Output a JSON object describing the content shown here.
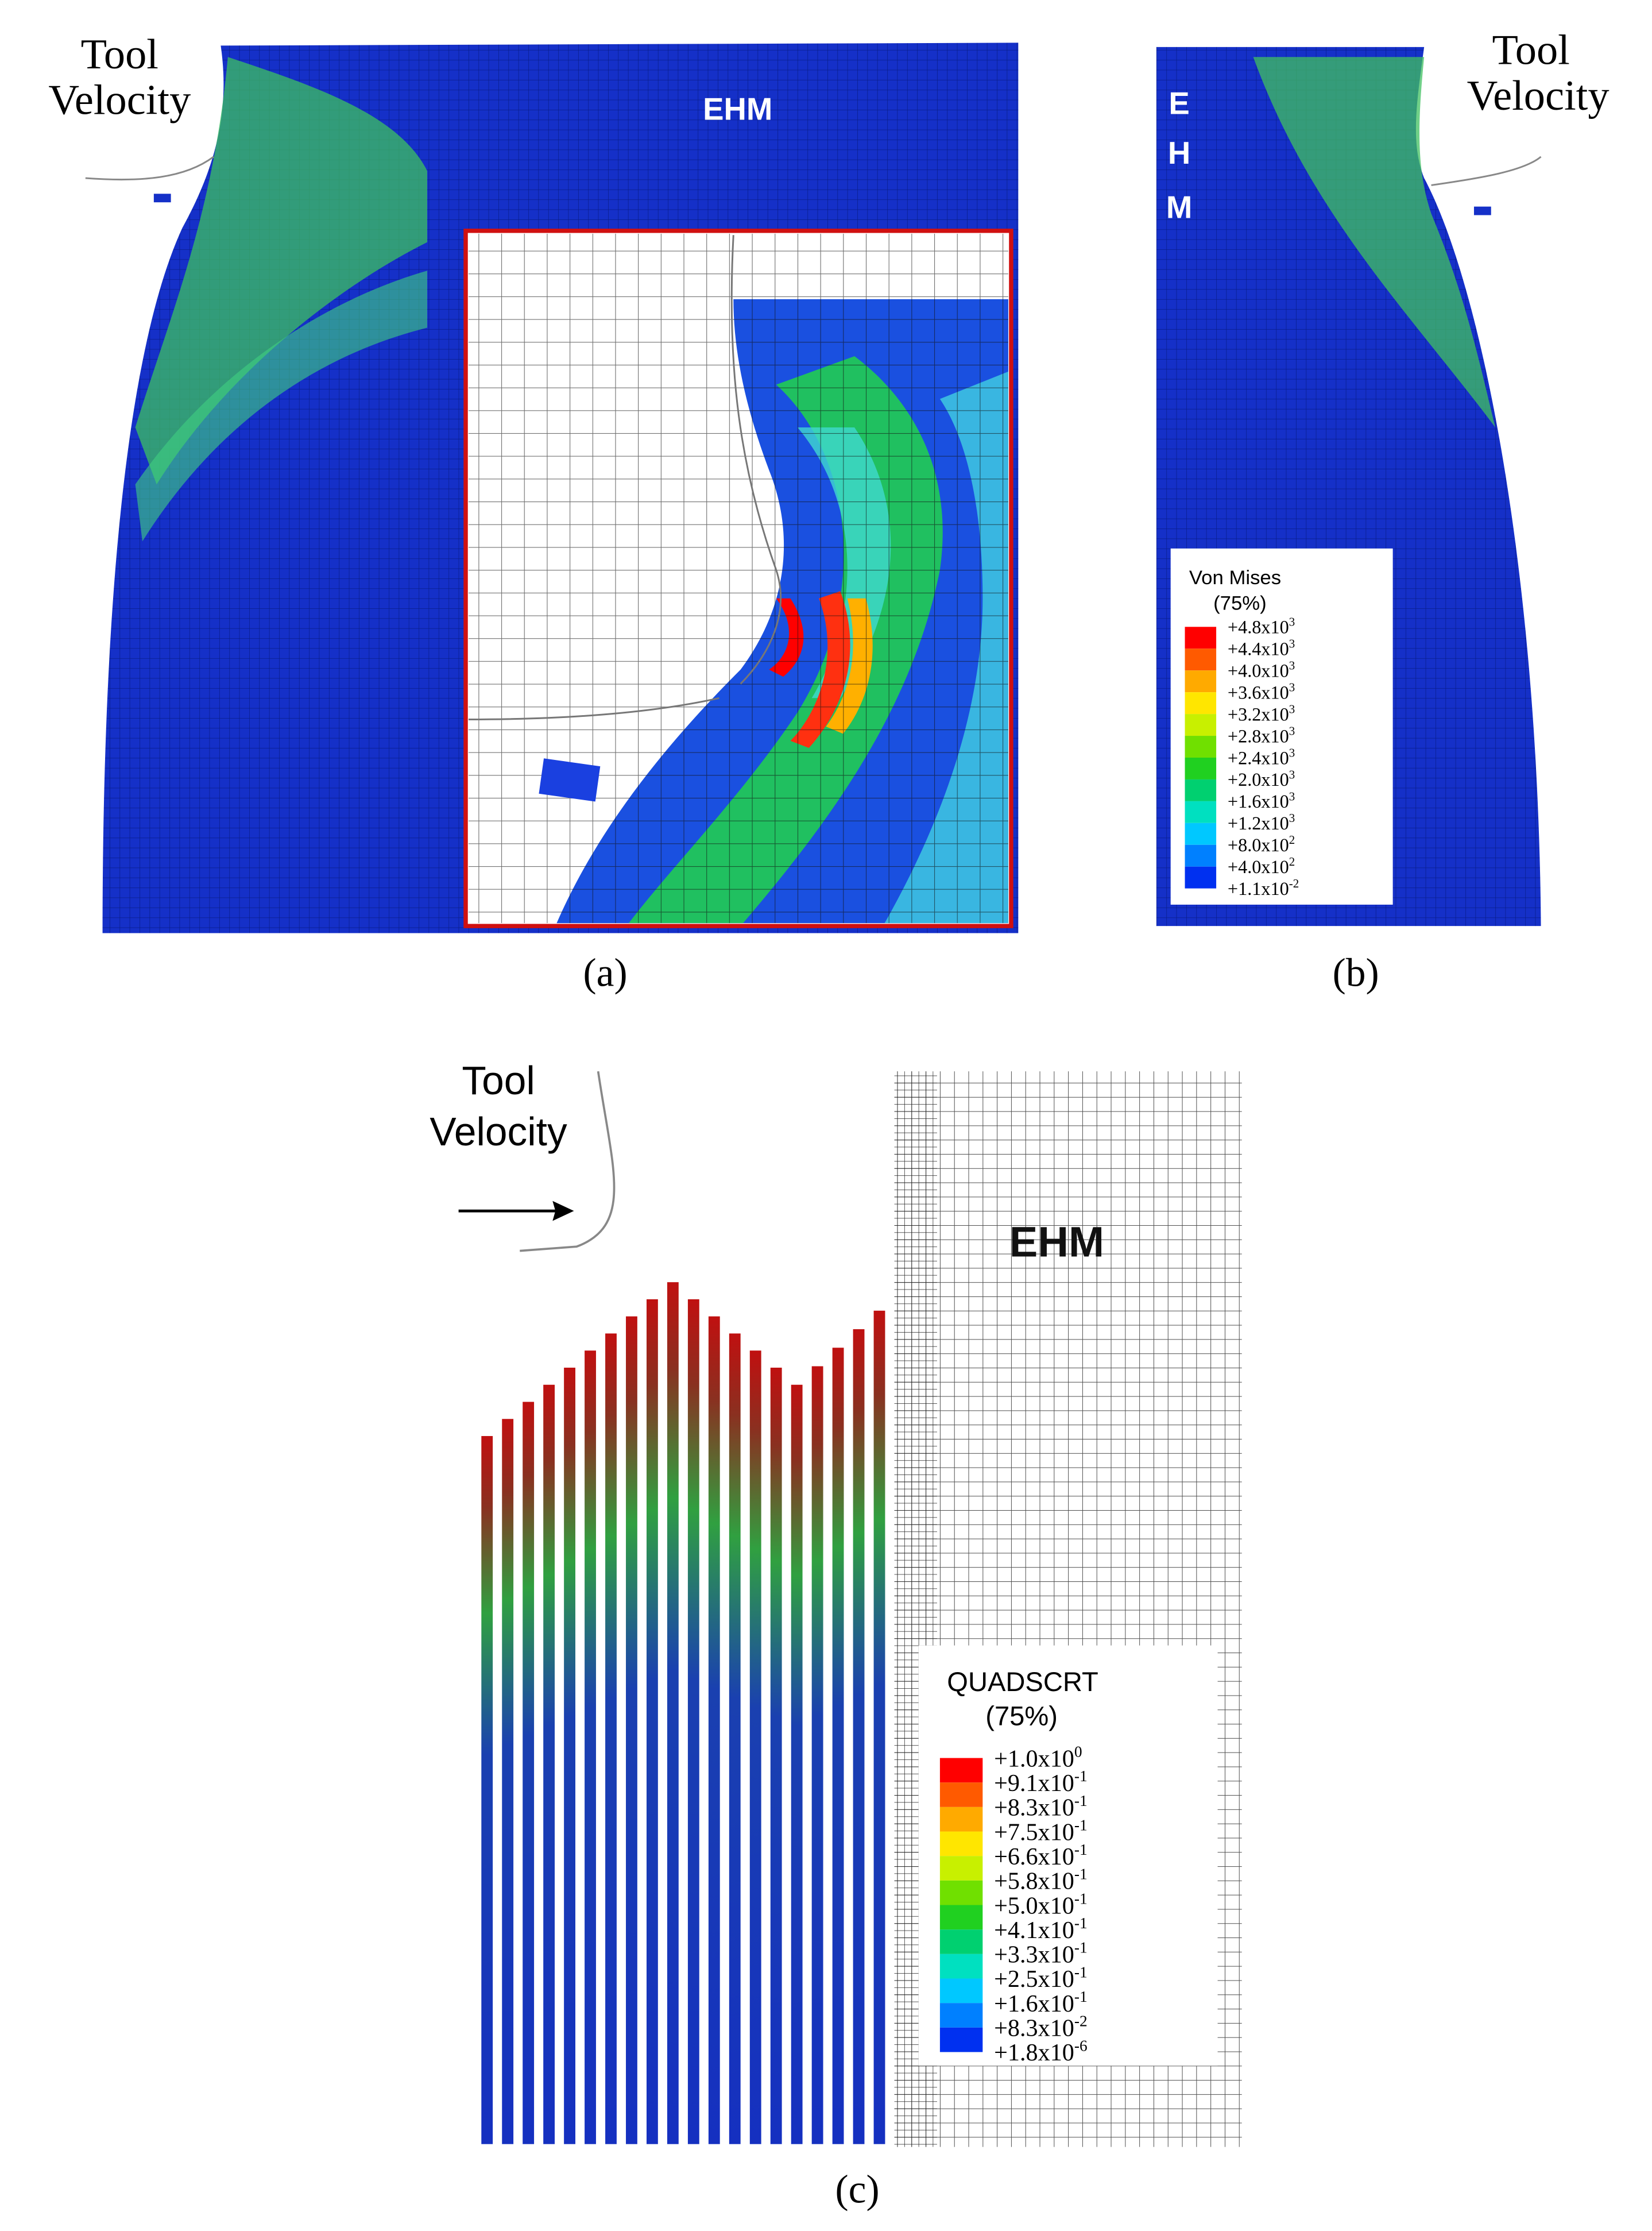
{
  "panel_a": {
    "tool_label": [
      "Tool",
      "Velocity"
    ],
    "model_label": "EHM",
    "caption": "(a)"
  },
  "panel_b": {
    "tool_label": [
      "Tool",
      "Velocity"
    ],
    "model_label": [
      "E",
      "H",
      "M"
    ],
    "caption": "(b)",
    "legend": {
      "title": "Von Mises",
      "subtitle": "(75%)",
      "labels": [
        {
          "mantissa": "+4.8x10",
          "exponent": "3"
        },
        {
          "mantissa": "+4.4x10",
          "exponent": "3"
        },
        {
          "mantissa": "+4.0x10",
          "exponent": "3"
        },
        {
          "mantissa": "+3.6x10",
          "exponent": "3"
        },
        {
          "mantissa": "+3.2x10",
          "exponent": "3"
        },
        {
          "mantissa": "+2.8x10",
          "exponent": "3"
        },
        {
          "mantissa": "+2.4x10",
          "exponent": "3"
        },
        {
          "mantissa": "+2.0x10",
          "exponent": "3"
        },
        {
          "mantissa": "+1.6x10",
          "exponent": "3"
        },
        {
          "mantissa": "+1.2x10",
          "exponent": "3"
        },
        {
          "mantissa": "+8.0x10",
          "exponent": "2"
        },
        {
          "mantissa": "+4.0x10",
          "exponent": "2"
        },
        {
          "mantissa": "+1.1x10",
          "exponent": "-2"
        }
      ]
    }
  },
  "panel_c": {
    "tool_label": [
      "Tool",
      "Velocity"
    ],
    "model_label": "EHM",
    "caption": "(c)",
    "legend": {
      "title": "QUADSCRT",
      "subtitle": "(75%)",
      "labels": [
        {
          "mantissa": "+1.0x10",
          "exponent": "0"
        },
        {
          "mantissa": "+9.1x10",
          "exponent": "-1"
        },
        {
          "mantissa": "+8.3x10",
          "exponent": "-1"
        },
        {
          "mantissa": "+7.5x10",
          "exponent": "-1"
        },
        {
          "mantissa": "+6.6x10",
          "exponent": "-1"
        },
        {
          "mantissa": "+5.8x10",
          "exponent": "-1"
        },
        {
          "mantissa": "+5.0x10",
          "exponent": "-1"
        },
        {
          "mantissa": "+4.1x10",
          "exponent": "-1"
        },
        {
          "mantissa": "+3.3x10",
          "exponent": "-1"
        },
        {
          "mantissa": "+2.5x10",
          "exponent": "-1"
        },
        {
          "mantissa": "+1.6x10",
          "exponent": "-1"
        },
        {
          "mantissa": "+8.3x10",
          "exponent": "-2"
        },
        {
          "mantissa": "+1.8x10",
          "exponent": "-6"
        }
      ]
    }
  }
}
